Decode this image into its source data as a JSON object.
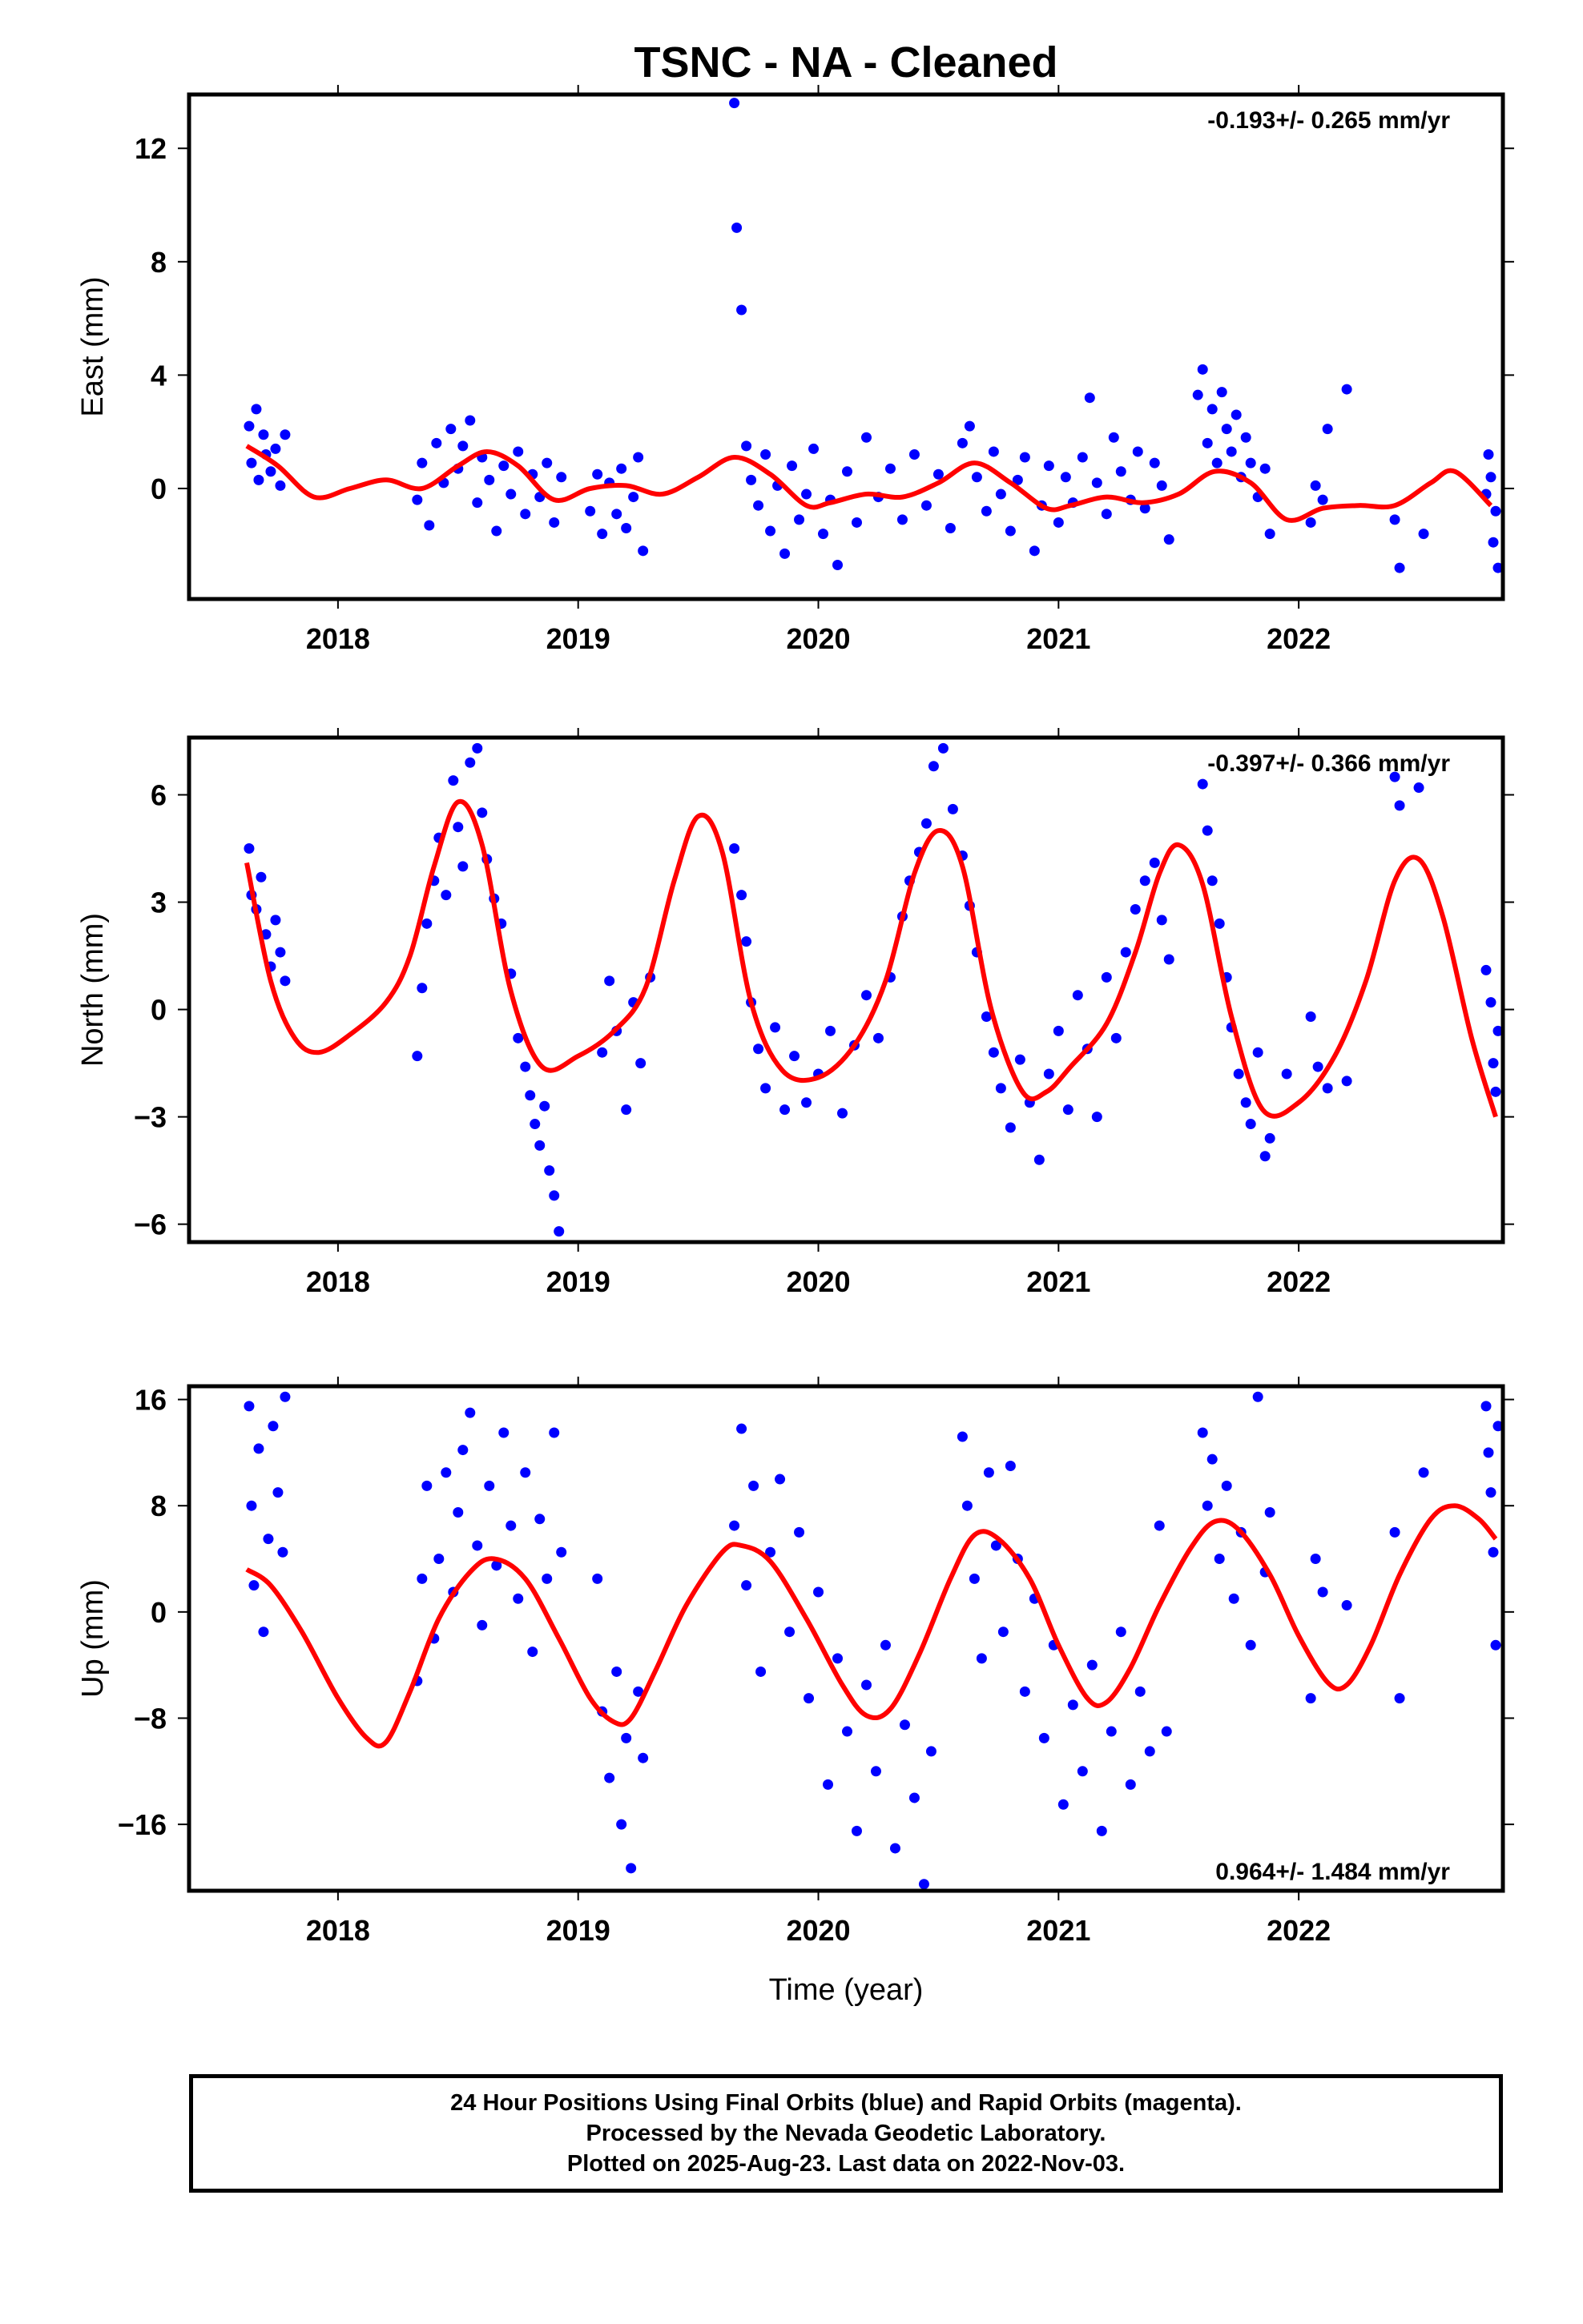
{
  "title": "TSNC  - NA - Cleaned",
  "footer": {
    "line1": "24 Hour Positions Using Final Orbits (blue) and Rapid Orbits (magenta).",
    "line2": "Processed by the Nevada Geodetic Laboratory.",
    "line3": "Plotted on 2025-Aug-23. Last data on 2022-Nov-03."
  },
  "colors": {
    "points": "#0000ff",
    "model": "#ff0000",
    "frame": "#000000"
  },
  "chart_data": [
    {
      "type": "scatter",
      "name": "east",
      "ylabel": "East (mm)",
      "xlabel": "",
      "xlim": [
        2017.38,
        2022.85
      ],
      "ylim": [
        -3.9,
        13.9
      ],
      "xticks": [
        2018,
        2019,
        2020,
        2021,
        2022
      ],
      "yticks": [
        0,
        4,
        8,
        12
      ],
      "rate_text": "-0.193+/- 0.265 mm/yr",
      "rate_position": "top-right",
      "model_curve": {
        "x": [
          2017.62,
          2017.75,
          2017.9,
          2018.05,
          2018.2,
          2018.35,
          2018.5,
          2018.62,
          2018.75,
          2018.9,
          2019.05,
          2019.2,
          2019.35,
          2019.5,
          2019.65,
          2019.8,
          2019.95,
          2020.05,
          2020.2,
          2020.35,
          2020.5,
          2020.65,
          2020.8,
          2020.95,
          2021.05,
          2021.2,
          2021.35,
          2021.5,
          2021.65,
          2021.8,
          2021.95,
          2022.1,
          2022.25,
          2022.4,
          2022.55,
          2022.65,
          2022.8
        ],
        "y": [
          1.5,
          0.8,
          -0.3,
          0.0,
          0.3,
          0.0,
          0.8,
          1.3,
          0.8,
          -0.4,
          0.0,
          0.1,
          -0.2,
          0.4,
          1.1,
          0.5,
          -0.6,
          -0.5,
          -0.2,
          -0.3,
          0.2,
          0.9,
          0.2,
          -0.7,
          -0.6,
          -0.3,
          -0.5,
          -0.2,
          0.6,
          0.2,
          -1.1,
          -0.7,
          -0.6,
          -0.6,
          0.2,
          0.6,
          -0.6
        ]
      },
      "points": {
        "x": [
          2017.63,
          2017.64,
          2017.66,
          2017.67,
          2017.69,
          2017.7,
          2017.72,
          2017.74,
          2017.76,
          2017.78,
          2018.33,
          2018.35,
          2018.38,
          2018.41,
          2018.44,
          2018.47,
          2018.5,
          2018.52,
          2018.55,
          2018.58,
          2018.6,
          2018.63,
          2018.66,
          2018.69,
          2018.72,
          2018.75,
          2018.78,
          2018.81,
          2018.84,
          2018.87,
          2018.9,
          2018.93,
          2019.05,
          2019.08,
          2019.1,
          2019.13,
          2019.16,
          2019.18,
          2019.2,
          2019.23,
          2019.25,
          2019.27,
          2019.65,
          2019.66,
          2019.68,
          2019.7,
          2019.72,
          2019.75,
          2019.78,
          2019.8,
          2019.83,
          2019.86,
          2019.89,
          2019.92,
          2019.95,
          2019.98,
          2020.02,
          2020.05,
          2020.08,
          2020.12,
          2020.16,
          2020.2,
          2020.25,
          2020.3,
          2020.35,
          2020.4,
          2020.45,
          2020.5,
          2020.55,
          2020.6,
          2020.63,
          2020.66,
          2020.7,
          2020.73,
          2020.76,
          2020.8,
          2020.83,
          2020.86,
          2020.9,
          2020.93,
          2020.96,
          2021.0,
          2021.03,
          2021.06,
          2021.1,
          2021.13,
          2021.16,
          2021.2,
          2021.23,
          2021.26,
          2021.3,
          2021.33,
          2021.36,
          2021.4,
          2021.43,
          2021.46,
          2021.58,
          2021.6,
          2021.62,
          2021.64,
          2021.66,
          2021.68,
          2021.7,
          2021.72,
          2021.74,
          2021.76,
          2021.78,
          2021.8,
          2021.83,
          2021.86,
          2021.88,
          2022.05,
          2022.07,
          2022.1,
          2022.12,
          2022.2,
          2022.4,
          2022.42,
          2022.52,
          2022.78,
          2022.79,
          2022.8,
          2022.81,
          2022.82,
          2022.83
        ],
        "y": [
          2.2,
          0.9,
          2.8,
          0.3,
          1.9,
          1.2,
          0.6,
          1.4,
          0.1,
          1.9,
          -0.4,
          0.9,
          -1.3,
          1.6,
          0.2,
          2.1,
          0.7,
          1.5,
          2.4,
          -0.5,
          1.1,
          0.3,
          -1.5,
          0.8,
          -0.2,
          1.3,
          -0.9,
          0.5,
          -0.3,
          0.9,
          -1.2,
          0.4,
          -0.8,
          0.5,
          -1.6,
          0.2,
          -0.9,
          0.7,
          -1.4,
          -0.3,
          1.1,
          -2.2,
          13.6,
          9.2,
          6.3,
          1.5,
          0.3,
          -0.6,
          1.2,
          -1.5,
          0.1,
          -2.3,
          0.8,
          -1.1,
          -0.2,
          1.4,
          -1.6,
          -0.4,
          -2.7,
          0.6,
          -1.2,
          1.8,
          -0.3,
          0.7,
          -1.1,
          1.2,
          -0.6,
          0.5,
          -1.4,
          1.6,
          2.2,
          0.4,
          -0.8,
          1.3,
          -0.2,
          -1.5,
          0.3,
          1.1,
          -2.2,
          -0.6,
          0.8,
          -1.2,
          0.4,
          -0.5,
          1.1,
          3.2,
          0.2,
          -0.9,
          1.8,
          0.6,
          -0.4,
          1.3,
          -0.7,
          0.9,
          0.1,
          -1.8,
          3.3,
          4.2,
          1.6,
          2.8,
          0.9,
          3.4,
          2.1,
          1.3,
          2.6,
          0.4,
          1.8,
          0.9,
          -0.3,
          0.7,
          -1.6,
          -1.2,
          0.1,
          -0.4,
          2.1,
          3.5,
          -1.1,
          -2.8,
          -1.6,
          -0.2,
          1.2,
          0.4,
          -1.9,
          -0.8,
          -2.8
        ]
      }
    },
    {
      "type": "scatter",
      "name": "north",
      "ylabel": "North (mm)",
      "xlabel": "",
      "xlim": [
        2017.38,
        2022.85
      ],
      "ylim": [
        -6.5,
        7.6
      ],
      "xticks": [
        2018,
        2019,
        2020,
        2021,
        2022
      ],
      "yticks": [
        -6,
        -3,
        0,
        3,
        6
      ],
      "rate_text": "-0.397+/- 0.366 mm/yr",
      "rate_position": "top-right",
      "model_curve": {
        "x": [
          2017.62,
          2017.72,
          2017.82,
          2017.92,
          2018.05,
          2018.2,
          2018.3,
          2018.4,
          2018.5,
          2018.6,
          2018.72,
          2018.85,
          2019.0,
          2019.15,
          2019.28,
          2019.4,
          2019.5,
          2019.6,
          2019.72,
          2019.85,
          2020.0,
          2020.15,
          2020.28,
          2020.4,
          2020.5,
          2020.6,
          2020.72,
          2020.85,
          2020.95,
          2021.05,
          2021.2,
          2021.32,
          2021.42,
          2021.5,
          2021.6,
          2021.72,
          2021.85,
          2022.0,
          2022.15,
          2022.28,
          2022.4,
          2022.5,
          2022.6,
          2022.72,
          2022.82
        ],
        "y": [
          4.1,
          0.8,
          -0.8,
          -1.2,
          -0.7,
          0.2,
          1.5,
          4.0,
          5.8,
          4.6,
          0.5,
          -1.6,
          -1.3,
          -0.6,
          0.6,
          3.6,
          5.4,
          4.4,
          0.2,
          -1.7,
          -1.9,
          -1.0,
          0.8,
          3.8,
          5.0,
          4.0,
          0.0,
          -2.3,
          -2.3,
          -1.6,
          -0.4,
          1.6,
          3.8,
          4.6,
          3.5,
          -0.2,
          -2.8,
          -2.6,
          -1.3,
          0.8,
          3.6,
          4.2,
          2.6,
          -0.8,
          -3.0
        ]
      },
      "points": {
        "x": [
          2017.63,
          2017.64,
          2017.66,
          2017.68,
          2017.7,
          2017.72,
          2017.74,
          2017.76,
          2017.78,
          2018.33,
          2018.35,
          2018.37,
          2018.4,
          2018.42,
          2018.45,
          2018.48,
          2018.5,
          2018.52,
          2018.55,
          2018.58,
          2018.6,
          2018.62,
          2018.65,
          2018.68,
          2018.72,
          2018.75,
          2018.78,
          2018.8,
          2018.82,
          2018.84,
          2018.86,
          2018.88,
          2018.9,
          2018.92,
          2019.1,
          2019.13,
          2019.16,
          2019.2,
          2019.23,
          2019.26,
          2019.3,
          2019.65,
          2019.68,
          2019.7,
          2019.72,
          2019.75,
          2019.78,
          2019.82,
          2019.86,
          2019.9,
          2019.95,
          2020.0,
          2020.05,
          2020.1,
          2020.15,
          2020.2,
          2020.25,
          2020.3,
          2020.35,
          2020.38,
          2020.42,
          2020.45,
          2020.48,
          2020.52,
          2020.56,
          2020.6,
          2020.63,
          2020.66,
          2020.7,
          2020.73,
          2020.76,
          2020.8,
          2020.84,
          2020.88,
          2020.92,
          2020.96,
          2021.0,
          2021.04,
          2021.08,
          2021.12,
          2021.16,
          2021.2,
          2021.24,
          2021.28,
          2021.32,
          2021.36,
          2021.4,
          2021.43,
          2021.46,
          2021.6,
          2021.62,
          2021.64,
          2021.67,
          2021.7,
          2021.72,
          2021.75,
          2021.78,
          2021.8,
          2021.83,
          2021.86,
          2021.88,
          2021.95,
          2022.05,
          2022.08,
          2022.12,
          2022.2,
          2022.4,
          2022.42,
          2022.5,
          2022.78,
          2022.8,
          2022.81,
          2022.82,
          2022.83
        ],
        "y": [
          4.5,
          3.2,
          2.8,
          3.7,
          2.1,
          1.2,
          2.5,
          1.6,
          0.8,
          -1.3,
          0.6,
          2.4,
          3.6,
          4.8,
          3.2,
          6.4,
          5.1,
          4.0,
          6.9,
          7.3,
          5.5,
          4.2,
          3.1,
          2.4,
          1.0,
          -0.8,
          -1.6,
          -2.4,
          -3.2,
          -3.8,
          -2.7,
          -4.5,
          -5.2,
          -6.2,
          -1.2,
          0.8,
          -0.6,
          -2.8,
          0.2,
          -1.5,
          0.9,
          4.5,
          3.2,
          1.9,
          0.2,
          -1.1,
          -2.2,
          -0.5,
          -2.8,
          -1.3,
          -2.6,
          -1.8,
          -0.6,
          -2.9,
          -1.0,
          0.4,
          -0.8,
          0.9,
          2.6,
          3.6,
          4.4,
          5.2,
          6.8,
          7.3,
          5.6,
          4.3,
          2.9,
          1.6,
          -0.2,
          -1.2,
          -2.2,
          -3.3,
          -1.4,
          -2.6,
          -4.2,
          -1.8,
          -0.6,
          -2.8,
          0.4,
          -1.1,
          -3.0,
          0.9,
          -0.8,
          1.6,
          2.8,
          3.6,
          4.1,
          2.5,
          1.4,
          6.3,
          5.0,
          3.6,
          2.4,
          0.9,
          -0.5,
          -1.8,
          -2.6,
          -3.2,
          -1.2,
          -4.1,
          -3.6,
          -1.8,
          -0.2,
          -1.6,
          -2.2,
          -2.0,
          6.5,
          5.7,
          6.2,
          1.1,
          0.2,
          -1.5,
          -2.3,
          -0.6
        ]
      }
    },
    {
      "type": "scatter",
      "name": "up",
      "ylabel": "Up (mm)",
      "xlabel": "Time (year)",
      "xlim": [
        2017.38,
        2022.85
      ],
      "ylim": [
        -21,
        17
      ],
      "xticks": [
        2018,
        2019,
        2020,
        2021,
        2022
      ],
      "yticks": [
        -16,
        -8,
        0,
        8,
        16
      ],
      "rate_text": "0.964+/- 1.484 mm/yr",
      "rate_position": "bottom-right",
      "model_curve": {
        "x": [
          2017.62,
          2017.72,
          2017.85,
          2018.0,
          2018.12,
          2018.2,
          2018.3,
          2018.42,
          2018.55,
          2018.65,
          2018.78,
          2018.92,
          2019.05,
          2019.15,
          2019.22,
          2019.32,
          2019.45,
          2019.6,
          2019.68,
          2019.8,
          2019.95,
          2020.1,
          2020.2,
          2020.3,
          2020.42,
          2020.55,
          2020.65,
          2020.75,
          2020.88,
          2021.0,
          2021.12,
          2021.2,
          2021.3,
          2021.42,
          2021.55,
          2021.65,
          2021.75,
          2021.88,
          2022.0,
          2022.12,
          2022.2,
          2022.3,
          2022.42,
          2022.55,
          2022.65,
          2022.75,
          2022.82
        ],
        "y": [
          3.2,
          2.0,
          -1.5,
          -6.5,
          -9.5,
          -9.8,
          -6.0,
          -0.5,
          3.0,
          4.0,
          2.5,
          -2.0,
          -6.5,
          -8.3,
          -8.0,
          -4.5,
          0.5,
          4.5,
          5.0,
          3.8,
          -0.5,
          -5.5,
          -7.8,
          -7.3,
          -3.2,
          2.5,
          5.8,
          5.5,
          2.5,
          -2.5,
          -6.5,
          -6.8,
          -4.2,
          0.5,
          4.8,
          6.8,
          6.2,
          2.8,
          -1.8,
          -5.3,
          -5.5,
          -2.5,
          2.8,
          7.0,
          8.0,
          7.0,
          5.5
        ]
      },
      "points": {
        "x": [
          2017.63,
          2017.64,
          2017.65,
          2017.67,
          2017.69,
          2017.71,
          2017.73,
          2017.75,
          2017.77,
          2017.78,
          2018.33,
          2018.35,
          2018.37,
          2018.4,
          2018.42,
          2018.45,
          2018.48,
          2018.5,
          2018.52,
          2018.55,
          2018.58,
          2018.6,
          2018.63,
          2018.66,
          2018.69,
          2018.72,
          2018.75,
          2018.78,
          2018.81,
          2018.84,
          2018.87,
          2018.9,
          2018.93,
          2019.08,
          2019.1,
          2019.13,
          2019.16,
          2019.18,
          2019.2,
          2019.22,
          2019.25,
          2019.27,
          2019.65,
          2019.68,
          2019.7,
          2019.73,
          2019.76,
          2019.8,
          2019.84,
          2019.88,
          2019.92,
          2019.96,
          2020.0,
          2020.04,
          2020.08,
          2020.12,
          2020.16,
          2020.2,
          2020.24,
          2020.28,
          2020.32,
          2020.36,
          2020.4,
          2020.44,
          2020.47,
          2020.6,
          2020.62,
          2020.65,
          2020.68,
          2020.71,
          2020.74,
          2020.77,
          2020.8,
          2020.83,
          2020.86,
          2020.9,
          2020.94,
          2020.98,
          2021.02,
          2021.06,
          2021.1,
          2021.14,
          2021.18,
          2021.22,
          2021.26,
          2021.3,
          2021.34,
          2021.38,
          2021.42,
          2021.45,
          2021.6,
          2021.62,
          2021.64,
          2021.67,
          2021.7,
          2021.73,
          2021.76,
          2021.8,
          2021.83,
          2021.86,
          2021.88,
          2022.05,
          2022.07,
          2022.1,
          2022.2,
          2022.4,
          2022.42,
          2022.52,
          2022.78,
          2022.79,
          2022.8,
          2022.81,
          2022.82,
          2022.83
        ],
        "y": [
          15.5,
          8.0,
          2.0,
          12.3,
          -1.5,
          5.5,
          14.0,
          9.0,
          4.5,
          16.2,
          -5.2,
          2.5,
          9.5,
          -2.0,
          4.0,
          10.5,
          1.5,
          7.5,
          12.2,
          15.0,
          5.0,
          -1.0,
          9.5,
          3.5,
          13.5,
          6.5,
          1.0,
          10.5,
          -3.0,
          7.0,
          2.5,
          13.5,
          4.5,
          2.5,
          -7.5,
          -12.5,
          -4.5,
          -16.0,
          -9.5,
          -19.3,
          -6.0,
          -11.0,
          6.5,
          13.8,
          2.0,
          9.5,
          -4.5,
          4.5,
          10.0,
          -1.5,
          6.0,
          -6.5,
          1.5,
          -13.0,
          -3.5,
          -9.0,
          -16.5,
          -5.5,
          -12.0,
          -2.5,
          -17.8,
          -8.5,
          -14.0,
          -20.5,
          -10.5,
          13.2,
          8.0,
          2.5,
          -3.5,
          10.5,
          5.0,
          -1.5,
          11.0,
          4.0,
          -6.0,
          1.0,
          -9.5,
          -2.5,
          -14.5,
          -7.0,
          -12.0,
          -4.0,
          -16.5,
          -9.0,
          -1.5,
          -13.0,
          -6.0,
          -10.5,
          6.5,
          -9.0,
          13.5,
          8.0,
          11.5,
          4.0,
          9.5,
          1.0,
          6.0,
          -2.5,
          16.2,
          3.0,
          7.5,
          -6.5,
          4.0,
          1.5,
          0.5,
          6.0,
          -6.5,
          10.5,
          15.5,
          12.0,
          9.0,
          4.5,
          -2.5,
          14.0
        ]
      }
    }
  ]
}
